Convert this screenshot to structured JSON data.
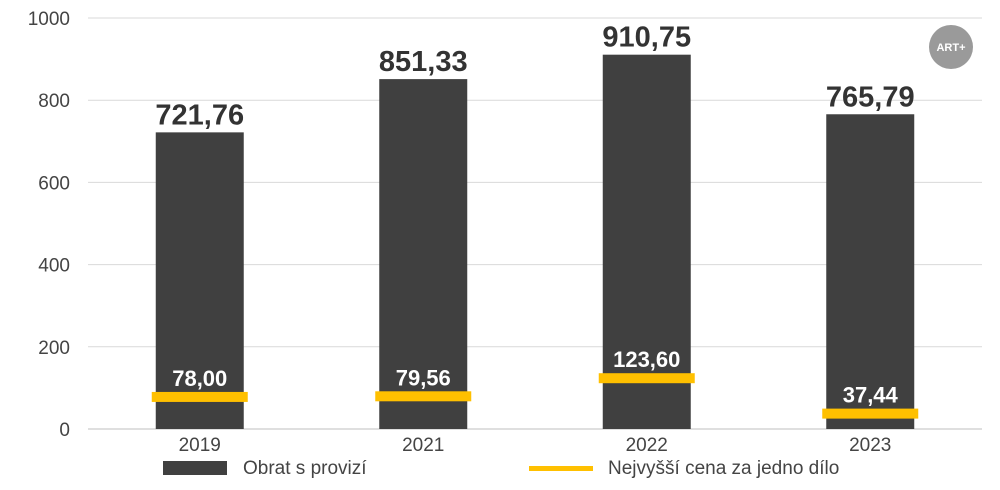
{
  "logo": {
    "text": "ART+"
  },
  "chart_data": {
    "type": "bar",
    "categories": [
      "2019",
      "2021",
      "2022",
      "2023"
    ],
    "ylim": [
      0,
      1000
    ],
    "yticks": [
      0,
      200,
      400,
      600,
      800,
      1000
    ],
    "grid": true,
    "legend_position": "bottom",
    "series": [
      {
        "name": "Obrat s provizí",
        "kind": "bar",
        "color": "#404040",
        "values": [
          721.76,
          851.33,
          910.75,
          765.79
        ],
        "labels": [
          "721,76",
          "851,33",
          "910,75",
          "765,79"
        ]
      },
      {
        "name": "Nejvyšší cena za jedno dílo",
        "kind": "marker",
        "color": "#FFC000",
        "values": [
          78.0,
          79.56,
          123.6,
          37.44
        ],
        "labels": [
          "78,00",
          "79,56",
          "123,60",
          "37,44"
        ]
      }
    ]
  }
}
